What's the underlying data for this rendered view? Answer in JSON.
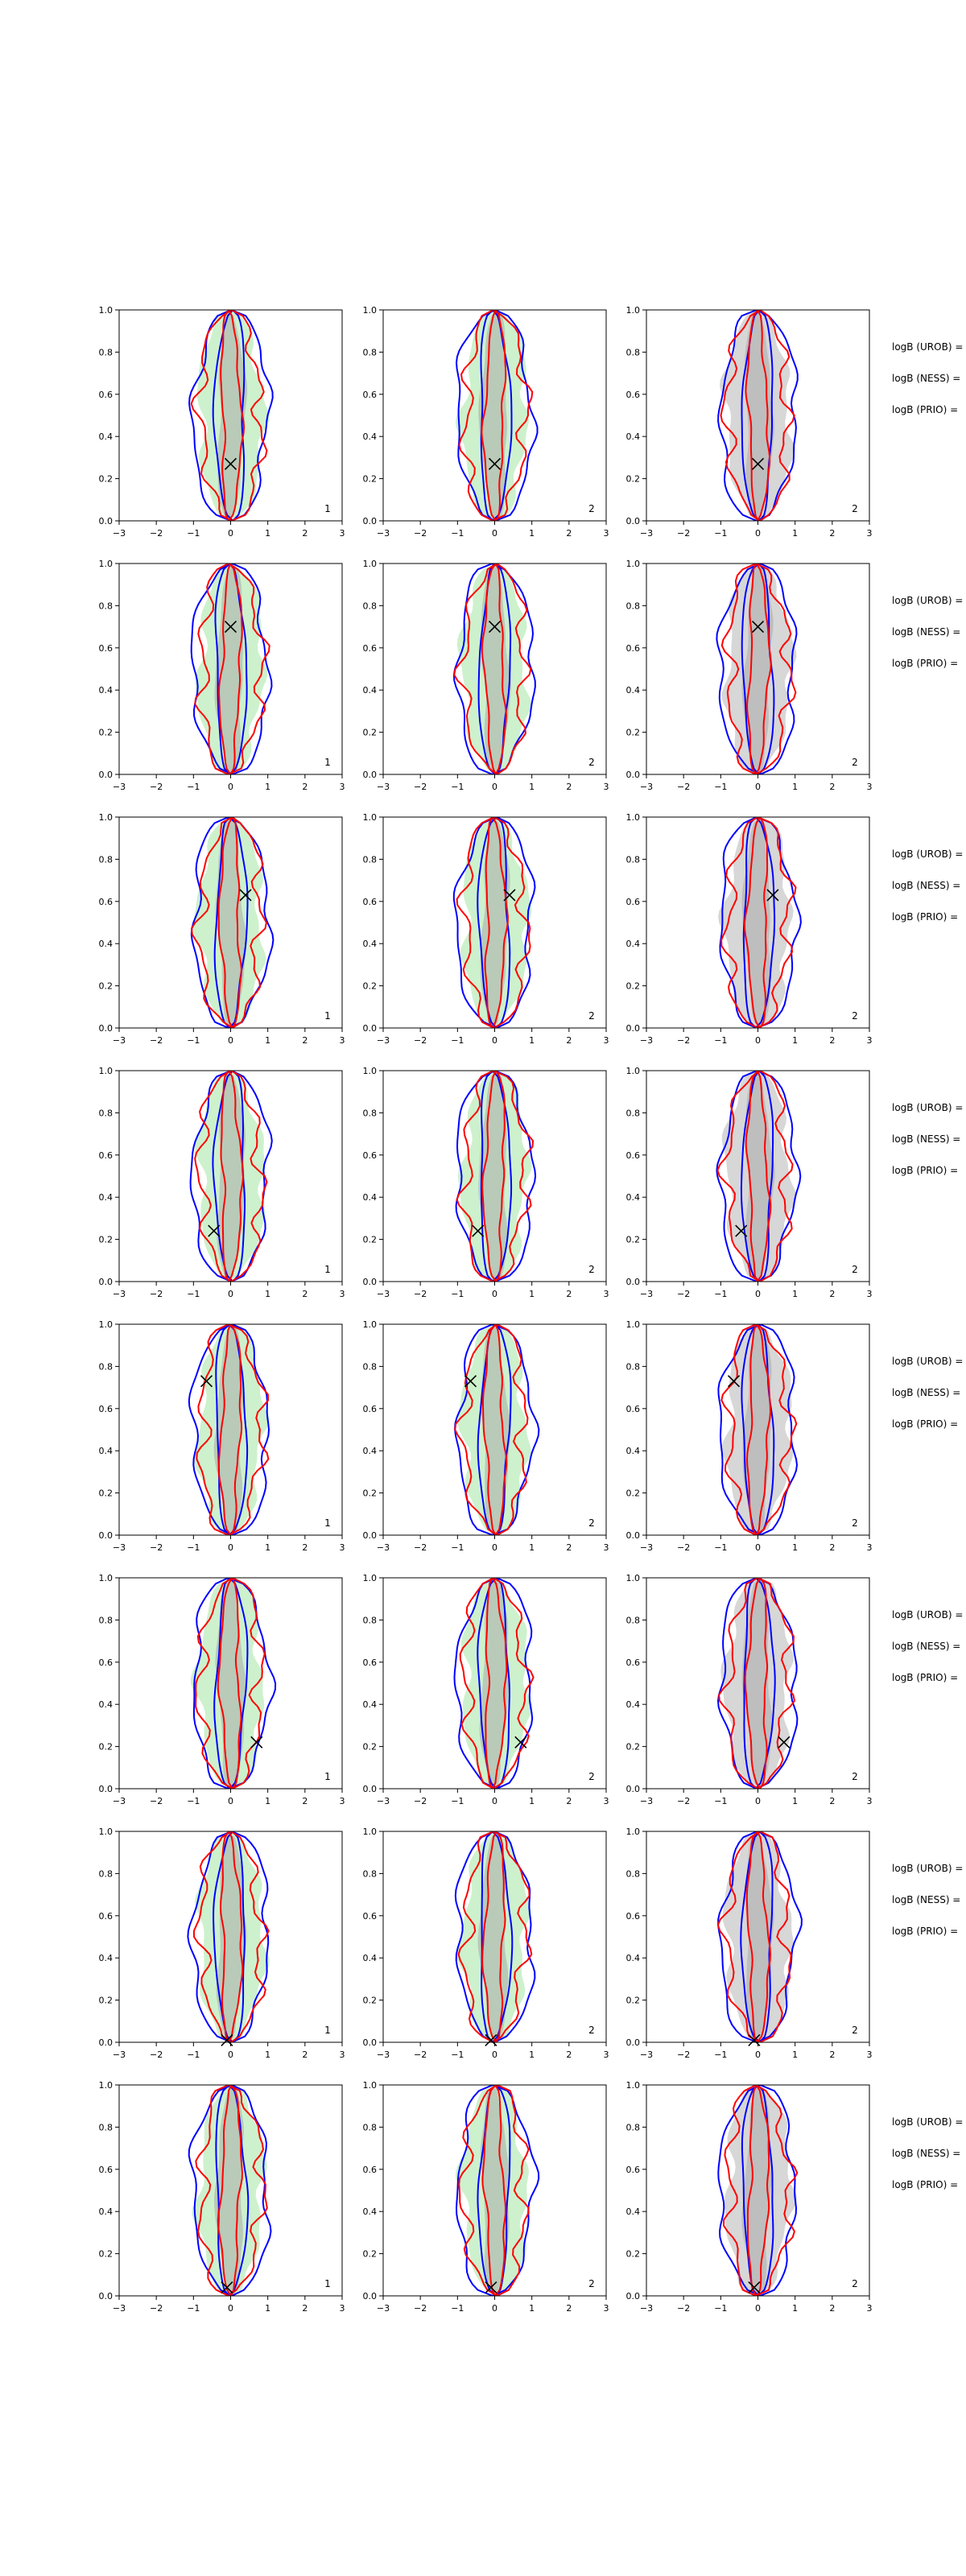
{
  "figure": {
    "colors": {
      "uniform_fill": "#c8f0c8",
      "grey_fill": "#d3d3d3",
      "inner_fill": "#a9a9a9",
      "blue_line": "#0000ff",
      "red_line": "#ff0000",
      "marker": "#000000"
    }
  },
  "chart_data": {
    "type": "contour-grid",
    "rows": 8,
    "columns": 3,
    "shared_axes": {
      "xlim": [
        -3,
        3
      ],
      "ylim": [
        0.0,
        1.0
      ],
      "xticks": [
        -3,
        -2,
        -1,
        0,
        1,
        2,
        3
      ],
      "yticks": [
        "0.0",
        "0.2",
        "0.4",
        "0.6",
        "0.8",
        "1.0"
      ],
      "xticklabels": [
        "−3",
        "−2",
        "−1",
        "0",
        "1",
        "2",
        "3"
      ]
    },
    "column_corner_labels": [
      "1",
      "2",
      "2"
    ],
    "column_fills": [
      "uniform_fill",
      "uniform_fill",
      "grey_fill"
    ],
    "row_side_labels": [
      "logB (UROB) =",
      "logB (NESS) =",
      "logB (PRIO) ="
    ],
    "truth_markers": [
      {
        "x": 0.0,
        "y": 0.27
      },
      {
        "x": 0.0,
        "y": 0.7
      },
      {
        "x": 0.4,
        "y": 0.63
      },
      {
        "x": -0.45,
        "y": 0.24
      },
      {
        "x": -0.65,
        "y": 0.73
      },
      {
        "x": 0.7,
        "y": 0.22
      },
      {
        "x": -0.1,
        "y": 0.01
      },
      {
        "x": -0.1,
        "y": 0.04
      }
    ],
    "contour_half_widths": {
      "blue_outer": 1.0,
      "blue_inner": 0.4,
      "red_outer": 0.8,
      "red_inner": 0.25,
      "fill_outer": 0.85,
      "fill_inner": 0.35
    }
  }
}
